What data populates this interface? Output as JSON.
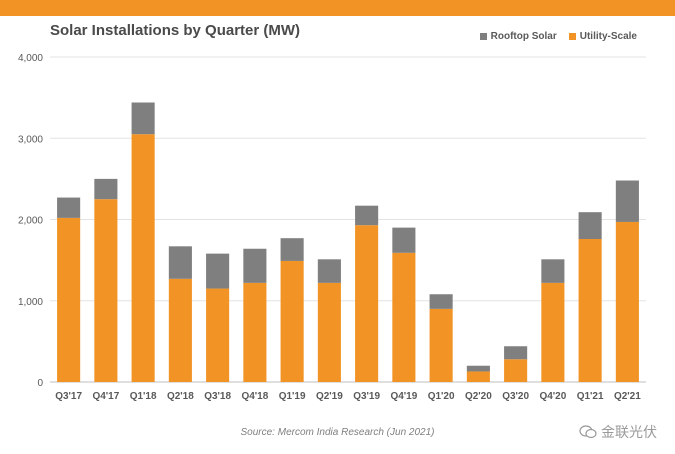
{
  "chart_data": {
    "type": "bar",
    "stacked": true,
    "title": "Solar Installations by Quarter (MW)",
    "categories": [
      "Q3'17",
      "Q4'17",
      "Q1'18",
      "Q2'18",
      "Q3'18",
      "Q4'18",
      "Q1'19",
      "Q2'19",
      "Q3'19",
      "Q4'19",
      "Q1'20",
      "Q2'20",
      "Q3'20",
      "Q4'20",
      "Q1'21",
      "Q2'21"
    ],
    "series": [
      {
        "name": "Utility-Scale",
        "color": "#f29325",
        "values": [
          2020,
          2250,
          3050,
          1270,
          1150,
          1220,
          1490,
          1220,
          1930,
          1590,
          900,
          130,
          280,
          1220,
          1760,
          1970
        ]
      },
      {
        "name": "Rooftop Solar",
        "color": "#7f7f7f",
        "values": [
          250,
          250,
          390,
          400,
          430,
          420,
          280,
          290,
          240,
          310,
          180,
          70,
          160,
          290,
          330,
          510
        ]
      }
    ],
    "ylim": [
      0,
      4000
    ],
    "yticks": [
      0,
      1000,
      2000,
      3000,
      4000
    ],
    "ytick_labels": [
      "0",
      "1,000",
      "2,000",
      "3,000",
      "4,000"
    ],
    "xlabel": "",
    "ylabel": "",
    "grid": true,
    "legend_position": "top-right",
    "legend": [
      "Rooftop Solar",
      "Utility-Scale"
    ],
    "source": "Source: Mercom India Research (Jun 2021)"
  },
  "watermark_text": "金联光伏"
}
